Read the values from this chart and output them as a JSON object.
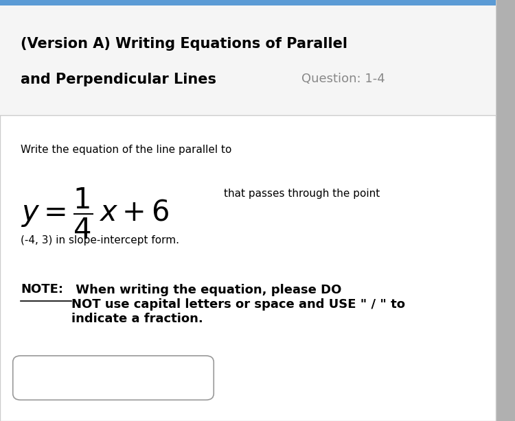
{
  "bg_color": "#e8e8e8",
  "card_bg": "#ffffff",
  "top_bar_color": "#5b9bd5",
  "header_title_line1": "(Version A) Writing Equations of Parallel",
  "header_title_line2": "and Perpendicular Lines",
  "header_question": "Question: 1-4",
  "header_title_color": "#000000",
  "header_question_color": "#888888",
  "header_title_fontsize": 15,
  "header_question_fontsize": 13,
  "prompt_text": "Write the equation of the line parallel to",
  "prompt_fontsize": 11,
  "equation_suffix": "that passes through the point",
  "equation_fontsize_large": 30,
  "equation_fontsize_small": 11,
  "point_text": "(-4, 3) in slope-intercept form.",
  "point_fontsize": 11,
  "note_label": "NOTE:",
  "note_body": " When writing the equation, please DO\nNOT use capital letters or space and USE \" / \" to\nindicate a fraction.",
  "note_fontsize": 13,
  "input_box_color": "#ffffff",
  "input_box_border": "#999999",
  "divider_color": "#cccccc"
}
